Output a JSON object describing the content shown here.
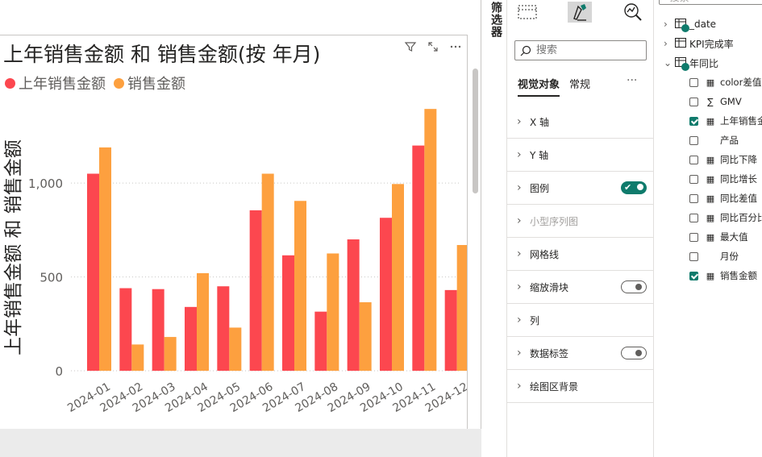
{
  "visual": {
    "title": "上年销售金额 和 销售金额(按 年月)",
    "legend": [
      {
        "label": "上年销售金额",
        "color": "#fc474f"
      },
      {
        "label": "销售金额",
        "color": "#fda03f"
      }
    ]
  },
  "chart_data": {
    "type": "bar",
    "title": "上年销售金额 和 销售金额(按 年月)",
    "ylabel": "上年销售金额 和 销售金额",
    "xlabel": "",
    "categories": [
      "2024-01",
      "2024-02",
      "2024-03",
      "2024-04",
      "2024-05",
      "2024-06",
      "2024-07",
      "2024-08",
      "2024-09",
      "2024-10",
      "2024-11",
      "2024-12"
    ],
    "series": [
      {
        "name": "上年销售金额",
        "color": "#fc474f",
        "values": [
          1050,
          440,
          435,
          340,
          450,
          855,
          615,
          315,
          700,
          815,
          1200,
          430
        ]
      },
      {
        "name": "销售金额",
        "color": "#fda03f",
        "values": [
          1190,
          140,
          180,
          520,
          230,
          1050,
          905,
          625,
          365,
          995,
          1395,
          670
        ]
      }
    ],
    "yticks": [
      0,
      500,
      1000
    ],
    "ytick_labels": [
      "0",
      "500",
      "1,000"
    ],
    "ylim": [
      0,
      1400
    ],
    "grid": true,
    "legend_position": "top-left"
  },
  "filters_pane": {
    "label": "筛选器"
  },
  "viz_pane": {
    "search_placeholder": "搜索",
    "tabs": [
      {
        "label": "视觉对象"
      },
      {
        "label": "常规"
      }
    ],
    "more": "···",
    "sections": [
      {
        "label": "X 轴"
      },
      {
        "label": "Y 轴"
      },
      {
        "label": "图例",
        "toggle": "on"
      },
      {
        "label": "小型序列图",
        "disabled": true
      },
      {
        "label": "网格线"
      },
      {
        "label": "缩放滑块",
        "toggle": "off"
      },
      {
        "label": "列"
      },
      {
        "label": "数据标签",
        "toggle": "off"
      },
      {
        "label": "绘图区背景"
      }
    ]
  },
  "data_pane": {
    "search_placeholder": "搜索",
    "tables": [
      {
        "name": "_date",
        "expanded": false
      },
      {
        "name": "KPI完成率",
        "expanded": false
      },
      {
        "name": "年同比",
        "expanded": true
      }
    ],
    "fields": [
      {
        "label": "color差值",
        "checked": false,
        "icon": "calc-icon"
      },
      {
        "label": "GMV",
        "checked": false,
        "icon": "sigma-icon"
      },
      {
        "label": "上年销售金",
        "checked": true,
        "icon": "calc-icon"
      },
      {
        "label": "产品",
        "checked": false,
        "icon": "none"
      },
      {
        "label": "同比下降",
        "checked": false,
        "icon": "calc-icon"
      },
      {
        "label": "同比增长",
        "checked": false,
        "icon": "calc-icon"
      },
      {
        "label": "同比差值",
        "checked": false,
        "icon": "calc-icon"
      },
      {
        "label": "同比百分比",
        "checked": false,
        "icon": "calc-icon"
      },
      {
        "label": "最大值",
        "checked": false,
        "icon": "calc-icon"
      },
      {
        "label": "月份",
        "checked": false,
        "icon": "none"
      },
      {
        "label": "销售金额",
        "checked": true,
        "icon": "calc-icon"
      }
    ]
  }
}
